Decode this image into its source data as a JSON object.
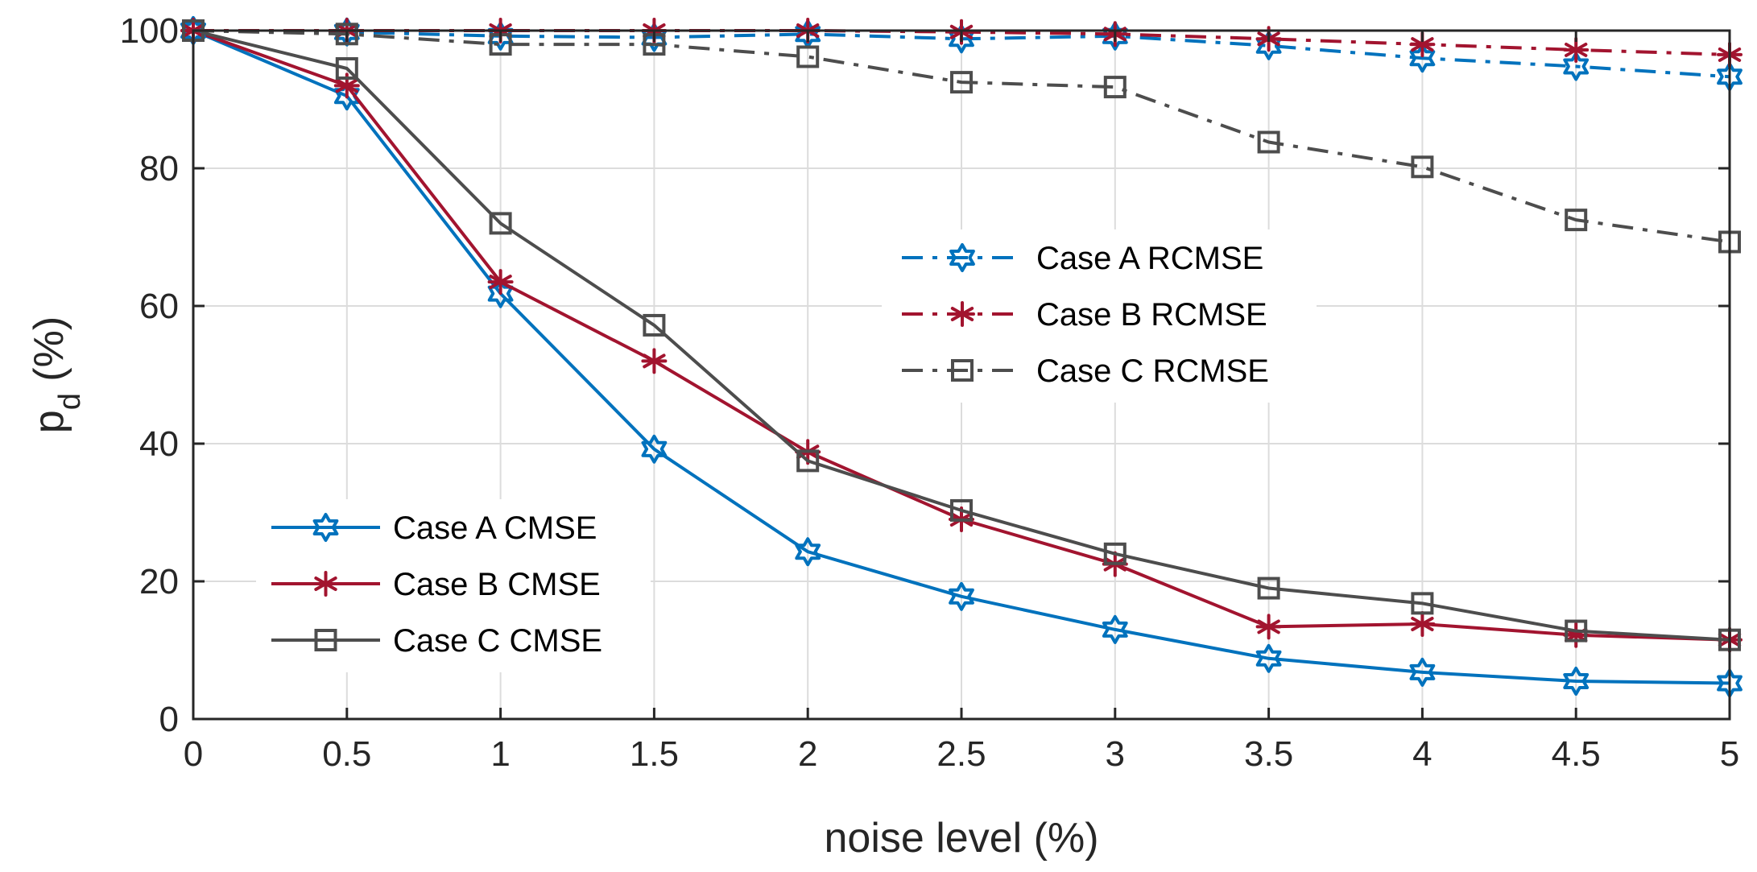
{
  "chart_data": {
    "type": "line",
    "xlabel": "noise level (%)",
    "ylabel_main": "p",
    "ylabel_sub": "d",
    "ylabel_suffix": " (%)",
    "xlim": [
      0,
      5
    ],
    "ylim": [
      0,
      100
    ],
    "xticks": [
      "0",
      "0.5",
      "1",
      "1.5",
      "2",
      "2.5",
      "3",
      "3.5",
      "4",
      "4.5",
      "5"
    ],
    "yticks": [
      "0",
      "20",
      "40",
      "60",
      "80",
      "100"
    ],
    "grid": true,
    "x": [
      0,
      0.5,
      1,
      1.5,
      2,
      2.5,
      3,
      3.5,
      4,
      4.5,
      5
    ],
    "series": [
      {
        "name": "Case A CMSE",
        "values": [
          100,
          90.5,
          61.8,
          39.2,
          24.3,
          17.8,
          13.0,
          8.8,
          6.8,
          5.5,
          5.2
        ],
        "color": "#0072BD",
        "dash": "solid",
        "marker": "hexagram",
        "legend": "bottom-left"
      },
      {
        "name": "Case B CMSE",
        "values": [
          100,
          92.0,
          63.5,
          52.0,
          38.8,
          29.0,
          22.5,
          13.4,
          13.8,
          12.2,
          11.5
        ],
        "color": "#A2142F",
        "dash": "solid",
        "marker": "asterisk",
        "legend": "bottom-left"
      },
      {
        "name": "Case C CMSE",
        "values": [
          100,
          94.5,
          72.0,
          57.2,
          37.5,
          30.3,
          24.0,
          19.0,
          16.8,
          12.8,
          11.5
        ],
        "color": "#4D4D4D",
        "dash": "solid",
        "marker": "square",
        "legend": "bottom-left"
      },
      {
        "name": "Case A RCMSE",
        "values": [
          100,
          99.8,
          99.2,
          99.0,
          99.5,
          98.8,
          99.2,
          97.8,
          96.0,
          94.8,
          93.3
        ],
        "color": "#0072BD",
        "dash": "dashdot",
        "marker": "hexagram",
        "legend": "upper-middle"
      },
      {
        "name": "Case B RCMSE",
        "values": [
          100,
          100,
          100,
          100,
          100,
          99.8,
          99.5,
          98.8,
          98.0,
          97.2,
          96.5
        ],
        "color": "#A2142F",
        "dash": "dashdot",
        "marker": "asterisk",
        "legend": "upper-middle"
      },
      {
        "name": "Case C RCMSE",
        "values": [
          100,
          99.5,
          98.0,
          98.0,
          96.2,
          92.5,
          91.8,
          83.8,
          80.2,
          72.5,
          69.3
        ],
        "color": "#4D4D4D",
        "dash": "dashdot",
        "marker": "square",
        "legend": "upper-middle"
      }
    ]
  }
}
